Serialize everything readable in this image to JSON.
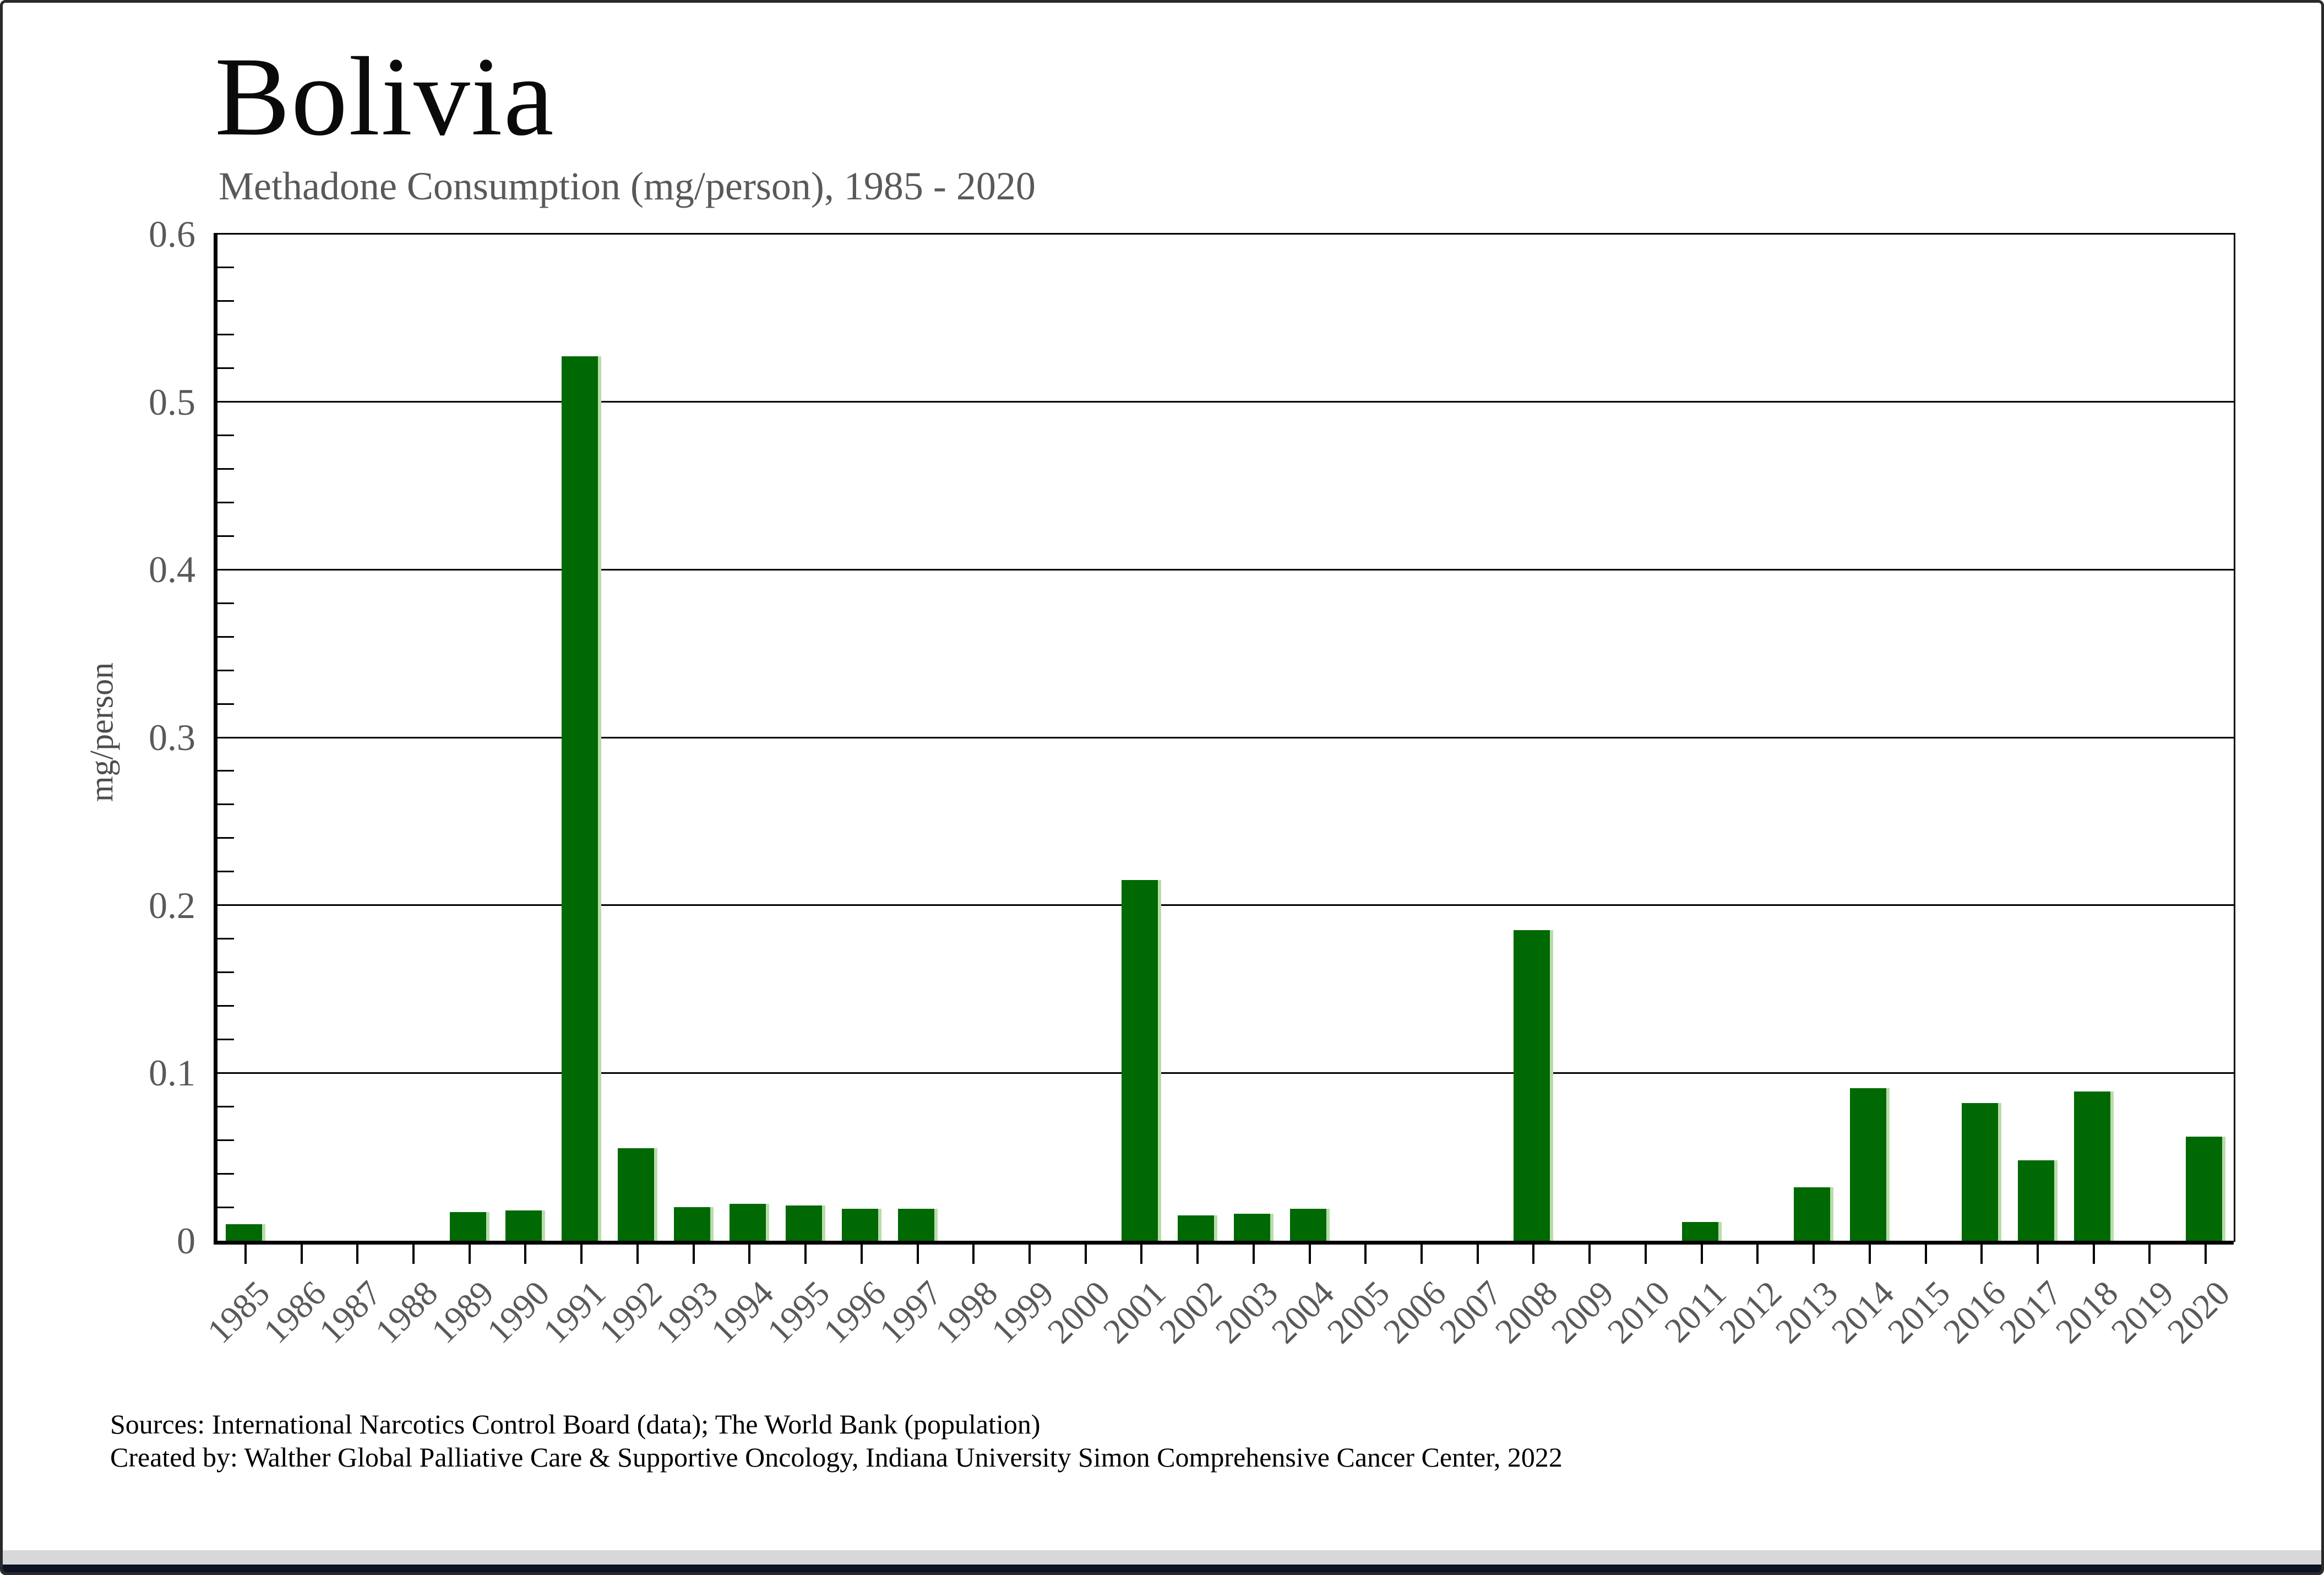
{
  "page": {
    "footer_line1": "Sources: International Narcotics Control Board (data); The World Bank (population)",
    "footer_line2": "Created by: Walther Global Palliative Care & Supportive Oncology, Indiana University Simon Comprehensive Cancer Center, 2022"
  },
  "chart_data": {
    "type": "bar",
    "title": "Bolivia",
    "subtitle": "Methadone Consumption (mg/person), 1985 - 2020",
    "ylabel": "mg/person",
    "ylim": [
      0,
      0.6
    ],
    "ytick_interval": 0.1,
    "ytick_labels": [
      "0",
      "0.1",
      "0.2",
      "0.3",
      "0.4",
      "0.5",
      "0.6"
    ],
    "minor_tick_interval": 0.02,
    "grid": "horizontal-major",
    "legend": "none",
    "bar_color": "#006903",
    "bar_edge_color": "#b9dcab",
    "axis_color": "#000000",
    "tick_label_color": "#595959",
    "categories": [
      1985,
      1986,
      1987,
      1988,
      1989,
      1990,
      1991,
      1992,
      1993,
      1994,
      1995,
      1996,
      1997,
      1998,
      1999,
      2000,
      2001,
      2002,
      2003,
      2004,
      2005,
      2006,
      2007,
      2008,
      2009,
      2010,
      2011,
      2012,
      2013,
      2014,
      2015,
      2016,
      2017,
      2018,
      2019,
      2020
    ],
    "values": [
      0.01,
      0,
      0,
      0,
      0.017,
      0.018,
      0.527,
      0.055,
      0.02,
      0.022,
      0.021,
      0.019,
      0.019,
      0,
      0,
      0,
      0.215,
      0.015,
      0.016,
      0.019,
      0,
      0,
      0,
      0.185,
      0,
      0,
      0.011,
      0,
      0.032,
      0.091,
      0,
      0.082,
      0.048,
      0.089,
      0,
      0.062
    ]
  }
}
